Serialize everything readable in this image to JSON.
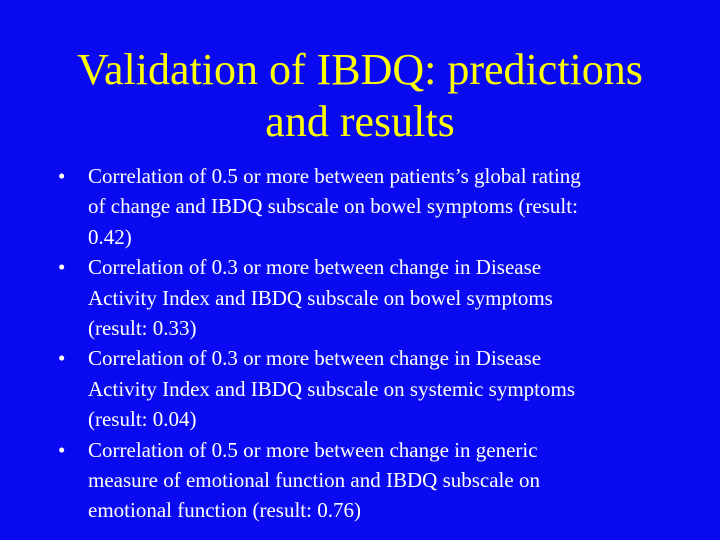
{
  "title": {
    "lines": [
      "Validation of IBDQ: predictions",
      "and results"
    ]
  },
  "bullets": [
    {
      "lines": [
        "Correlation of 0.5 or more between patients’s global rating",
        "of change and IBDQ subscale on bowel symptoms (result:",
        "0.42)"
      ]
    },
    {
      "lines": [
        "Correlation of 0.3 or more between change in Disease",
        "Activity Index and IBDQ subscale on bowel symptoms",
        "(result: 0.33)"
      ]
    },
    {
      "lines": [
        "Correlation of 0.3 or more between change in Disease",
        "Activity Index and IBDQ subscale on systemic symptoms",
        "(result: 0.04)"
      ]
    },
    {
      "lines": [
        "Correlation of 0.5 or more between change in generic",
        "measure of emotional function and IBDQ subscale on",
        "emotional function (result: 0.76)"
      ]
    }
  ]
}
